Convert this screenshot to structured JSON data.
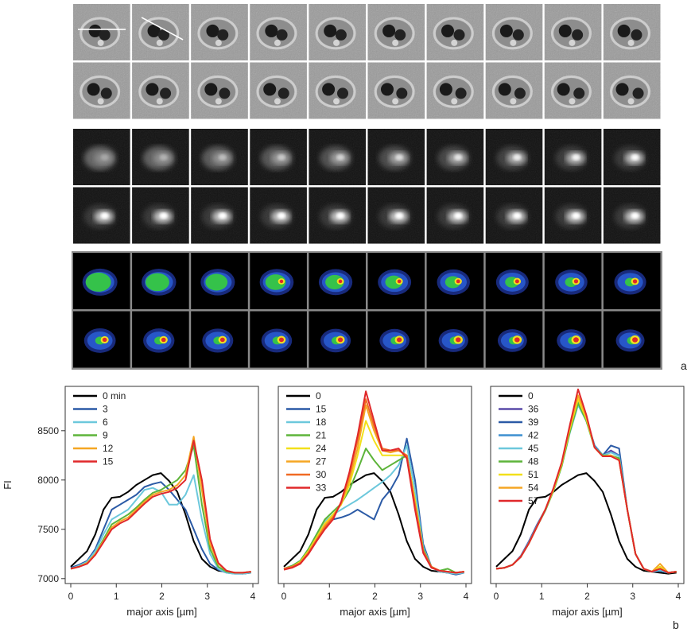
{
  "panel_a": {
    "label": "a",
    "rows_per_group": 2,
    "cols": 10,
    "groups": [
      {
        "kind": "brightfield",
        "name": "brightfield frames"
      },
      {
        "kind": "fluorescence",
        "name": "fluorescence frames"
      },
      {
        "kind": "pseudocolor",
        "name": "pseudocolor frames"
      }
    ],
    "line_markers_on_first_two_frames": true
  },
  "panel_b_label": "b",
  "chart_data": [
    {
      "type": "line",
      "xlabel": "major axis [µm]",
      "ylabel": "FI",
      "xlim": [
        0,
        4
      ],
      "ylim": [
        6950,
        8950
      ],
      "xticks": [
        0,
        1,
        2,
        3,
        4
      ],
      "yticks": [
        7000,
        7500,
        8000,
        8500
      ],
      "legend_position": "top-left",
      "x": [
        0,
        0.18,
        0.36,
        0.54,
        0.72,
        0.9,
        1.08,
        1.26,
        1.44,
        1.62,
        1.8,
        1.98,
        2.16,
        2.34,
        2.52,
        2.7,
        2.88,
        3.06,
        3.24,
        3.42,
        3.6,
        3.78,
        3.96
      ],
      "series": [
        {
          "name": "0 min",
          "color": "#000000",
          "values": [
            7120,
            7200,
            7280,
            7450,
            7700,
            7820,
            7830,
            7880,
            7950,
            8000,
            8050,
            8070,
            7990,
            7880,
            7650,
            7380,
            7200,
            7120,
            7080,
            7070,
            7060,
            7050,
            7060
          ]
        },
        {
          "name": "3",
          "color": "#2b5aa6",
          "values": [
            7110,
            7140,
            7180,
            7300,
            7500,
            7700,
            7750,
            7800,
            7850,
            7930,
            7960,
            7980,
            7900,
            7800,
            7700,
            7500,
            7300,
            7150,
            7090,
            7060,
            7050,
            7050,
            7060
          ]
        },
        {
          "name": "6",
          "color": "#6cc8dc",
          "values": [
            7100,
            7130,
            7170,
            7280,
            7450,
            7600,
            7650,
            7700,
            7800,
            7900,
            7920,
            7880,
            7750,
            7750,
            7850,
            8050,
            7600,
            7250,
            7100,
            7060,
            7050,
            7050,
            7060
          ]
        },
        {
          "name": "9",
          "color": "#5db43a",
          "values": [
            7100,
            7120,
            7160,
            7250,
            7400,
            7550,
            7600,
            7650,
            7720,
            7800,
            7870,
            7900,
            7950,
            8000,
            8100,
            8350,
            7750,
            7300,
            7120,
            7070,
            7060,
            7060,
            7070
          ]
        },
        {
          "name": "12",
          "color": "#f5a623",
          "values": [
            7100,
            7120,
            7160,
            7250,
            7380,
            7520,
            7580,
            7620,
            7700,
            7780,
            7850,
            7880,
            7900,
            7950,
            8050,
            8440,
            7900,
            7350,
            7150,
            7080,
            7060,
            7060,
            7070
          ]
        },
        {
          "name": "15",
          "color": "#e0282a",
          "values": [
            7100,
            7120,
            7150,
            7240,
            7370,
            7500,
            7560,
            7600,
            7680,
            7760,
            7830,
            7860,
            7880,
            7920,
            8000,
            8400,
            8000,
            7400,
            7160,
            7080,
            7060,
            7060,
            7070
          ]
        }
      ]
    },
    {
      "type": "line",
      "xlabel": "major axis [µm]",
      "xlim": [
        0,
        4
      ],
      "ylim": [
        6950,
        8950
      ],
      "xticks": [
        0,
        1,
        2,
        3,
        4
      ],
      "legend_position": "top-left",
      "x": [
        0,
        0.18,
        0.36,
        0.54,
        0.72,
        0.9,
        1.08,
        1.26,
        1.44,
        1.62,
        1.8,
        1.98,
        2.16,
        2.34,
        2.52,
        2.7,
        2.88,
        3.06,
        3.24,
        3.42,
        3.6,
        3.78,
        3.96
      ],
      "series": [
        {
          "name": "0",
          "color": "#000000",
          "values": [
            7120,
            7200,
            7280,
            7450,
            7700,
            7820,
            7830,
            7880,
            7950,
            8000,
            8050,
            8070,
            7990,
            7880,
            7650,
            7380,
            7200,
            7120,
            7080,
            7070,
            7060,
            7050,
            7060
          ]
        },
        {
          "name": "15",
          "color": "#2b5aa6",
          "values": [
            7100,
            7130,
            7180,
            7280,
            7420,
            7550,
            7600,
            7620,
            7650,
            7700,
            7650,
            7600,
            7800,
            7900,
            8050,
            8420,
            8000,
            7350,
            7120,
            7070,
            7060,
            7040,
            7060
          ]
        },
        {
          "name": "18",
          "color": "#6cc8dc",
          "values": [
            7100,
            7130,
            7180,
            7300,
            7450,
            7580,
            7650,
            7700,
            7750,
            7800,
            7860,
            7920,
            7980,
            8050,
            8150,
            8350,
            7900,
            7320,
            7120,
            7070,
            7060,
            7050,
            7060
          ]
        },
        {
          "name": "21",
          "color": "#5db43a",
          "values": [
            7100,
            7130,
            7180,
            7300,
            7450,
            7600,
            7680,
            7760,
            7900,
            8100,
            8320,
            8200,
            8100,
            8150,
            8200,
            8250,
            7800,
            7300,
            7120,
            7080,
            7100,
            7060,
            7070
          ]
        },
        {
          "name": "24",
          "color": "#f2e01a",
          "values": [
            7100,
            7120,
            7170,
            7280,
            7420,
            7560,
            7650,
            7750,
            7950,
            8250,
            8600,
            8400,
            8250,
            8250,
            8250,
            8250,
            7800,
            7280,
            7120,
            7080,
            7070,
            7060,
            7070
          ]
        },
        {
          "name": "27",
          "color": "#f5a623",
          "values": [
            7100,
            7120,
            7160,
            7270,
            7400,
            7540,
            7630,
            7760,
            8000,
            8320,
            8760,
            8500,
            8300,
            8280,
            8300,
            8250,
            7750,
            7280,
            7120,
            7080,
            7070,
            7060,
            7070
          ]
        },
        {
          "name": "30",
          "color": "#f06a24",
          "values": [
            7100,
            7120,
            7160,
            7260,
            7390,
            7520,
            7620,
            7770,
            8050,
            8400,
            8820,
            8550,
            8320,
            8300,
            8300,
            8250,
            7750,
            7280,
            7120,
            7080,
            7070,
            7060,
            7070
          ]
        },
        {
          "name": "33",
          "color": "#e0282a",
          "values": [
            7090,
            7110,
            7150,
            7250,
            7380,
            7500,
            7600,
            7780,
            8080,
            8450,
            8900,
            8600,
            8300,
            8300,
            8320,
            8220,
            7700,
            7260,
            7110,
            7080,
            7070,
            7060,
            7070
          ]
        }
      ]
    },
    {
      "type": "line",
      "xlabel": "major axis [µm]",
      "xlim": [
        0,
        4
      ],
      "ylim": [
        6950,
        8950
      ],
      "xticks": [
        0,
        1,
        2,
        3,
        4
      ],
      "legend_position": "top-left",
      "x": [
        0,
        0.18,
        0.36,
        0.54,
        0.72,
        0.9,
        1.08,
        1.26,
        1.44,
        1.62,
        1.8,
        1.98,
        2.16,
        2.34,
        2.52,
        2.7,
        2.88,
        3.06,
        3.24,
        3.42,
        3.6,
        3.78,
        3.96
      ],
      "series": [
        {
          "name": "0",
          "color": "#000000",
          "values": [
            7120,
            7200,
            7280,
            7450,
            7700,
            7820,
            7830,
            7880,
            7950,
            8000,
            8050,
            8070,
            7990,
            7880,
            7650,
            7380,
            7200,
            7120,
            7080,
            7070,
            7060,
            7050,
            7060
          ]
        },
        {
          "name": "36",
          "color": "#5a4aa8",
          "values": [
            7100,
            7110,
            7140,
            7230,
            7380,
            7550,
            7700,
            7900,
            8150,
            8500,
            8800,
            8600,
            8350,
            8250,
            8300,
            8250,
            7700,
            7250,
            7100,
            7070,
            7080,
            7060,
            7070
          ]
        },
        {
          "name": "39",
          "color": "#2b5aa6",
          "values": [
            7100,
            7110,
            7140,
            7220,
            7370,
            7540,
            7700,
            7900,
            8150,
            8500,
            8780,
            8620,
            8350,
            8250,
            8350,
            8320,
            7700,
            7250,
            7100,
            7070,
            7080,
            7060,
            7070
          ]
        },
        {
          "name": "42",
          "color": "#3d8fd0",
          "values": [
            7100,
            7110,
            7140,
            7220,
            7370,
            7540,
            7700,
            7900,
            8150,
            8500,
            8780,
            8620,
            8350,
            8250,
            8280,
            8250,
            7700,
            7250,
            7100,
            7070,
            7080,
            7060,
            7070
          ]
        },
        {
          "name": "45",
          "color": "#6cc8dc",
          "values": [
            7100,
            7110,
            7140,
            7220,
            7360,
            7530,
            7690,
            7890,
            8140,
            8480,
            8760,
            8600,
            8330,
            8250,
            8280,
            8240,
            7700,
            7250,
            7100,
            7070,
            7090,
            7060,
            7070
          ]
        },
        {
          "name": "48",
          "color": "#5db43a",
          "values": [
            7100,
            7110,
            7140,
            7220,
            7360,
            7530,
            7690,
            7890,
            8140,
            8490,
            8780,
            8600,
            8330,
            8250,
            8250,
            8220,
            7700,
            7250,
            7100,
            7070,
            7120,
            7060,
            7070
          ]
        },
        {
          "name": "51",
          "color": "#f2e01a",
          "values": [
            7100,
            7110,
            7140,
            7220,
            7360,
            7530,
            7700,
            7900,
            8160,
            8520,
            8820,
            8620,
            8330,
            8240,
            8250,
            8200,
            7700,
            7250,
            7100,
            7070,
            7120,
            7060,
            7070
          ]
        },
        {
          "name": "54",
          "color": "#f5a623",
          "values": [
            7100,
            7110,
            7140,
            7220,
            7360,
            7530,
            7700,
            7910,
            8170,
            8540,
            8860,
            8640,
            8330,
            8240,
            8250,
            8200,
            7700,
            7250,
            7100,
            7070,
            7150,
            7060,
            7070
          ]
        },
        {
          "name": "57",
          "color": "#e0282a",
          "values": [
            7100,
            7110,
            7140,
            7220,
            7360,
            7530,
            7700,
            7920,
            8180,
            8560,
            8920,
            8660,
            8330,
            8240,
            8240,
            8200,
            7700,
            7250,
            7100,
            7070,
            7100,
            7060,
            7070
          ]
        }
      ]
    }
  ]
}
